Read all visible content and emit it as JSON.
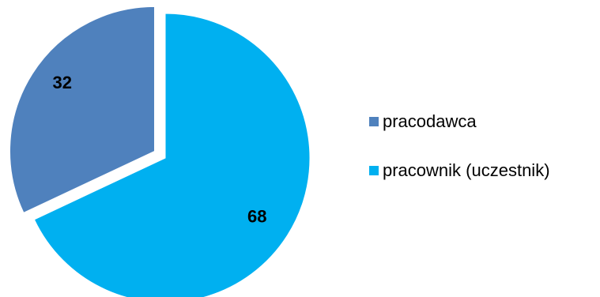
{
  "chart_data": {
    "type": "pie",
    "title": "",
    "categories": [
      "pracodawca",
      "pracownik (uczestnik)"
    ],
    "values": [
      32,
      68
    ],
    "data_labels": [
      "32",
      "68"
    ],
    "colors": [
      "#4F81BD",
      "#00B0F0"
    ],
    "exploded": true,
    "legend_position": "right"
  }
}
